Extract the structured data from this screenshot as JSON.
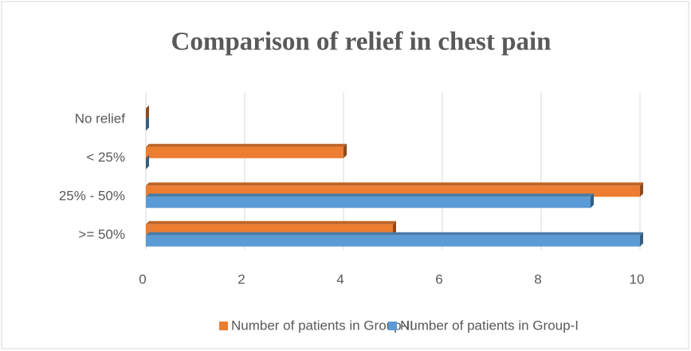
{
  "chart_data": {
    "type": "bar",
    "orientation": "horizontal",
    "title": "Comparison of relief in chest pain",
    "categories": [
      "No relief",
      "< 25%",
      "25% - 50%",
      ">= 50%"
    ],
    "series": [
      {
        "name": "Number of patients in Group-II",
        "color": "#ed7d31",
        "values": [
          0,
          4,
          10,
          5
        ]
      },
      {
        "name": "Number of patients in Group-I",
        "color": "#5b9bd5",
        "values": [
          0,
          0,
          9,
          10
        ]
      }
    ],
    "xlim": [
      0,
      10
    ],
    "xticks": [
      0,
      2,
      4,
      6,
      8,
      10
    ],
    "grid": true,
    "legend": "bottom"
  }
}
